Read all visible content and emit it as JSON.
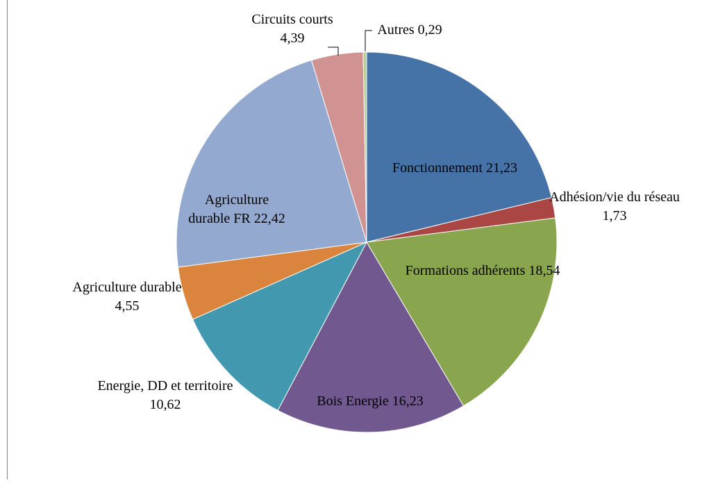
{
  "chart_data": {
    "type": "pie",
    "categories": [
      "Fonctionnement",
      "Adhésion/vie du réseau",
      "Formations adhérents",
      "Bois Energie",
      "Energie, DD et territoire",
      "Agriculture durable",
      "Agriculture durable FR",
      "Circuits courts",
      "Autres"
    ],
    "values": [
      21.23,
      1.73,
      18.54,
      16.23,
      10.62,
      4.55,
      22.42,
      4.39,
      0.29
    ],
    "value_labels": [
      "21,23",
      "1,73",
      "18,54",
      "16,23",
      "10,62",
      "4,55",
      "22,42",
      "4,39",
      "0,29"
    ],
    "colors": [
      "#4572a7",
      "#aa4643",
      "#89a54e",
      "#71588f",
      "#4198af",
      "#db843d",
      "#93a9cf",
      "#d19392",
      "#b9cd96"
    ]
  }
}
